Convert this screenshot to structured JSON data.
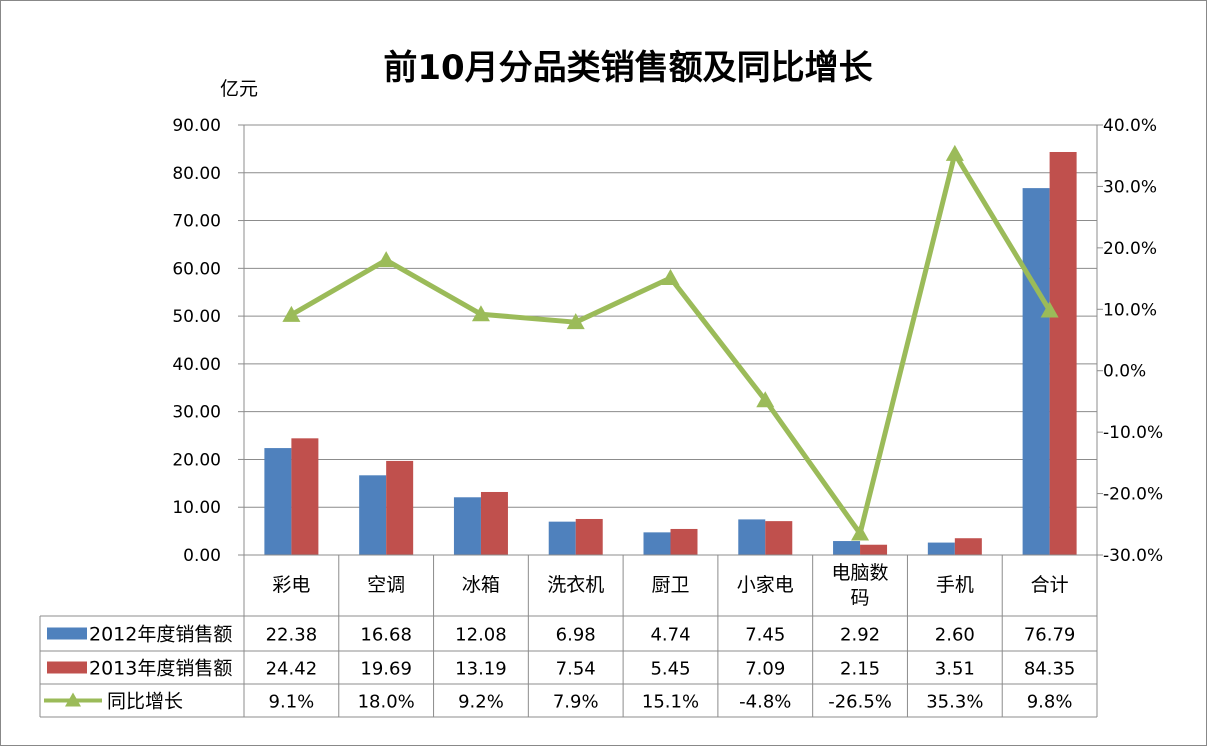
{
  "chart_data": {
    "type": "bar",
    "title": "前10月分品类销售额及同比增长",
    "ylabel": "亿元",
    "categories": [
      "彩电",
      "空调",
      "冰箱",
      "洗衣机",
      "厨卫",
      "小家电",
      "电脑数码",
      "手机",
      "合计"
    ],
    "category_lines": [
      [
        "彩电"
      ],
      [
        "空调"
      ],
      [
        "冰箱"
      ],
      [
        "洗衣机"
      ],
      [
        "厨卫"
      ],
      [
        "小家电"
      ],
      [
        "电脑数",
        "码"
      ],
      [
        "手机"
      ],
      [
        "合计"
      ]
    ],
    "ylim": [
      0,
      90
    ],
    "yticks": [
      "0.00",
      "10.00",
      "20.00",
      "30.00",
      "40.00",
      "50.00",
      "60.00",
      "70.00",
      "80.00",
      "90.00"
    ],
    "y2lim": [
      -30,
      40
    ],
    "y2ticks": [
      "-30.0%",
      "-20.0%",
      "-10.0%",
      "0.0%",
      "10.0%",
      "20.0%",
      "30.0%",
      "40.0%"
    ],
    "grid": true,
    "series": [
      {
        "name": "2012年度销售额",
        "type": "bar",
        "color": "#4f81bd",
        "values": [
          22.38,
          16.68,
          12.08,
          6.98,
          4.74,
          7.45,
          2.92,
          2.6,
          76.79
        ],
        "labels": [
          "22.38",
          "16.68",
          "12.08",
          "6.98",
          "4.74",
          "7.45",
          "2.92",
          "2.60",
          "76.79"
        ]
      },
      {
        "name": "2013年度销售额",
        "type": "bar",
        "color": "#c0504d",
        "values": [
          24.42,
          19.69,
          13.19,
          7.54,
          5.45,
          7.09,
          2.15,
          3.51,
          84.35
        ],
        "labels": [
          "24.42",
          "19.69",
          "13.19",
          "7.54",
          "5.45",
          "7.09",
          "2.15",
          "3.51",
          "84.35"
        ]
      },
      {
        "name": "同比增长",
        "type": "line",
        "axis": "right",
        "marker": "triangle",
        "color": "#9bbb59",
        "values": [
          9.1,
          18.0,
          9.2,
          7.9,
          15.1,
          -4.8,
          -26.5,
          35.3,
          9.8
        ],
        "labels": [
          "9.1%",
          "18.0%",
          "9.2%",
          "7.9%",
          "15.1%",
          "-4.8%",
          "-26.5%",
          "35.3%",
          "9.8%"
        ]
      }
    ]
  }
}
